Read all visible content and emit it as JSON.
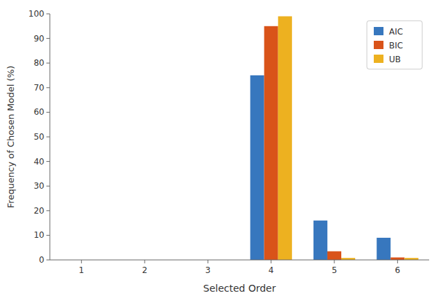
{
  "chart_data": {
    "type": "bar",
    "xlabel": "Selected Order",
    "ylabel": "Frequency of Chosen Model (%)",
    "categories": [
      "1",
      "2",
      "3",
      "4",
      "5",
      "6"
    ],
    "series": [
      {
        "name": "AIC",
        "color": "#3777BE",
        "values": [
          0,
          0,
          0,
          75,
          16,
          9
        ]
      },
      {
        "name": "BIC",
        "color": "#D95319",
        "values": [
          0,
          0,
          0,
          95,
          3.5,
          1
        ]
      },
      {
        "name": "UB",
        "color": "#EDB120",
        "values": [
          0,
          0,
          0,
          99,
          0.8,
          0.8
        ]
      }
    ],
    "ylim": [
      0,
      100
    ],
    "yticks": [
      0,
      10,
      20,
      30,
      40,
      50,
      60,
      70,
      80,
      90,
      100
    ],
    "grid": false,
    "legend": "upper right"
  }
}
